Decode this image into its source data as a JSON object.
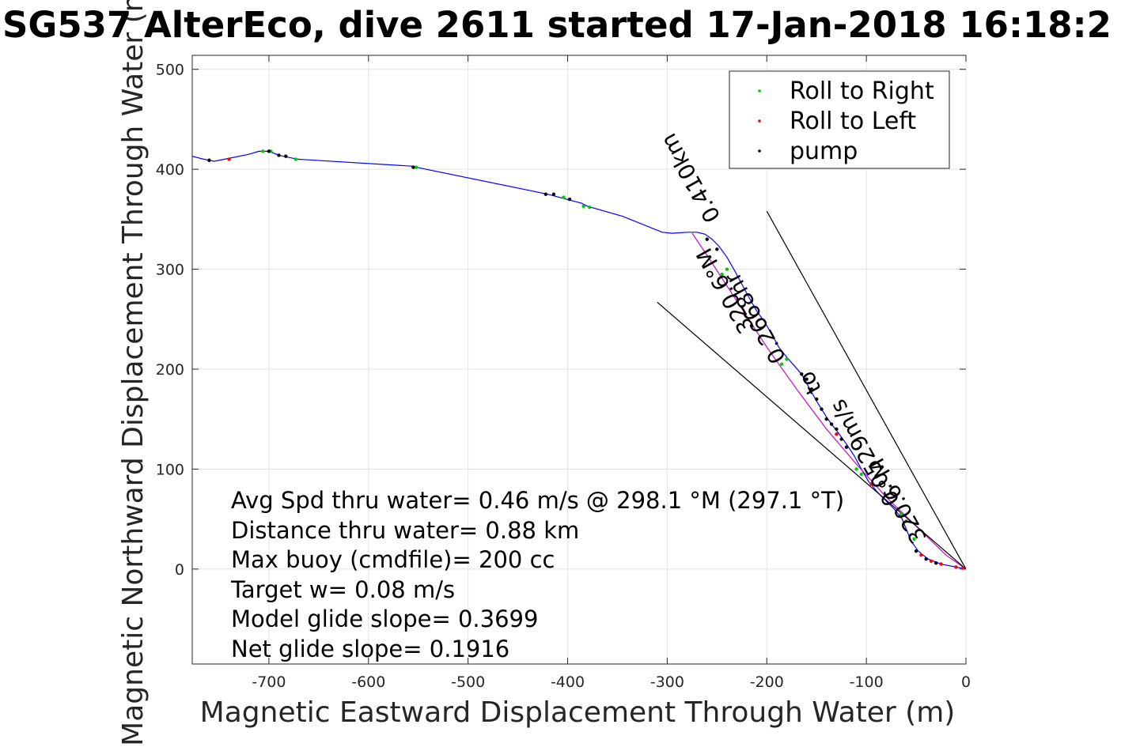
{
  "chart_data": {
    "type": "scatter",
    "title": "SG537 AlterEco, dive 2611 started 17-Jan-2018 16:18:2",
    "xlabel": "Magnetic Eastward Displacement Through Water (m)",
    "ylabel": "Magnetic Northward Displacement Through Water (m)",
    "xlim": [
      -777,
      0
    ],
    "ylim": [
      -95,
      514
    ],
    "xticks": [
      -700,
      -600,
      -500,
      -400,
      -300,
      -200,
      -100,
      0
    ],
    "yticks": [
      0,
      100,
      200,
      300,
      400,
      500
    ],
    "grid": true,
    "legend_position": "top-right",
    "legend": [
      {
        "label": "Roll to Right",
        "color": "#00cc00"
      },
      {
        "label": "Roll to Left",
        "color": "#ff0000"
      },
      {
        "label": "pump",
        "color": "#000000"
      }
    ],
    "series": [
      {
        "name": "track",
        "color": "#0000ff",
        "x": [
          0,
          -10,
          -25,
          -38,
          -48,
          -55,
          -60,
          -64,
          -68,
          -72,
          -78,
          -88,
          -98,
          -105,
          -112,
          -120,
          -128,
          -135,
          -140,
          -145,
          -150,
          -155,
          -160,
          -165,
          -172,
          -180,
          -188,
          -195,
          -202,
          -210,
          -218,
          -225,
          -232,
          -240,
          -248,
          -255,
          -262,
          -270,
          -280,
          -295,
          -305,
          -345,
          -380,
          -386,
          -420,
          -552,
          -555,
          -670,
          -676,
          -690,
          -700,
          -710,
          -720,
          -745,
          -755,
          -765,
          -777
        ],
        "y": [
          0,
          2,
          5,
          10,
          18,
          28,
          40,
          50,
          55,
          60,
          66,
          76,
          88,
          100,
          113,
          125,
          136,
          145,
          152,
          160,
          168,
          177,
          186,
          195,
          203,
          212,
          222,
          235,
          247,
          258,
          272,
          285,
          298,
          312,
          323,
          330,
          335,
          337,
          337,
          336,
          337,
          353,
          363,
          366,
          375,
          402,
          403,
          410,
          411,
          414,
          418,
          418,
          415,
          410,
          408,
          410,
          413
        ]
      },
      {
        "name": "heading line",
        "color": "#cc00cc",
        "x": [
          0,
          -20,
          -50,
          -80,
          -110,
          -140,
          -170,
          -200,
          -230,
          -260,
          -275
        ],
        "y": [
          0,
          14,
          43,
          72,
          105,
          140,
          180,
          222,
          268,
          314,
          336
        ]
      },
      {
        "name": "glide cone upper",
        "color": "#000000",
        "x": [
          0,
          -200
        ],
        "y": [
          0,
          358
        ]
      },
      {
        "name": "glide cone lower",
        "color": "#000000",
        "x": [
          0,
          -310
        ],
        "y": [
          0,
          267
        ]
      }
    ],
    "markers": {
      "roll_right": [
        [
          -698,
          418
        ],
        [
          -706,
          418
        ],
        [
          -673,
          410
        ],
        [
          -552,
          402
        ],
        [
          -384,
          363
        ],
        [
          -378,
          362
        ],
        [
          -404,
          372
        ],
        [
          -240,
          300
        ],
        [
          -245,
          295
        ],
        [
          -180,
          210
        ],
        [
          -185,
          205
        ],
        [
          -110,
          100
        ],
        [
          -105,
          95
        ],
        [
          -65,
          55
        ],
        [
          -60,
          48
        ],
        [
          -52,
          30
        ]
      ],
      "roll_left": [
        [
          -740,
          410
        ],
        [
          -25,
          5
        ],
        [
          -35,
          8
        ],
        [
          -45,
          14
        ],
        [
          -10,
          2
        ],
        [
          -3,
          1
        ],
        [
          -95,
          85
        ],
        [
          -130,
          135
        ]
      ],
      "pump": [
        [
          -700,
          418
        ],
        [
          -690,
          414
        ],
        [
          -683,
          413
        ],
        [
          -760,
          409
        ],
        [
          -555,
          402
        ],
        [
          -422,
          375
        ],
        [
          -414,
          375
        ],
        [
          -398,
          370
        ],
        [
          -160,
          190
        ],
        [
          -155,
          180
        ],
        [
          -150,
          170
        ],
        [
          -145,
          160
        ],
        [
          -140,
          150
        ],
        [
          -135,
          145
        ],
        [
          -130,
          140
        ],
        [
          -125,
          130
        ],
        [
          -120,
          122
        ],
        [
          -165,
          195
        ],
        [
          -250,
          320
        ],
        [
          -260,
          330
        ],
        [
          -30,
          6
        ],
        [
          -50,
          18
        ],
        [
          -40,
          10
        ]
      ]
    },
    "annotations": [
      {
        "text": "0.410km",
        "x": -270,
        "y": 395
      },
      {
        "text": "320.6°M",
        "x": -235,
        "y": 282
      },
      {
        "text": "0.2668hr",
        "x": -205,
        "y": 255
      },
      {
        "text": "to",
        "x": -150,
        "y": 190
      },
      {
        "text": "0.0529m/s",
        "x": -95,
        "y": 120
      },
      {
        "text": "320.6°M",
        "x": -62,
        "y": 72
      }
    ],
    "stats": [
      "Avg Spd thru water=  0.46 m/s @ 298.1 °M (297.1 °T)",
      "Distance thru water=  0.88 km",
      "Max buoy (cmdfile)= 200 cc",
      "Target w= 0.08 m/s",
      "Model glide slope= 0.3699",
      "Net glide slope= 0.1916"
    ]
  }
}
